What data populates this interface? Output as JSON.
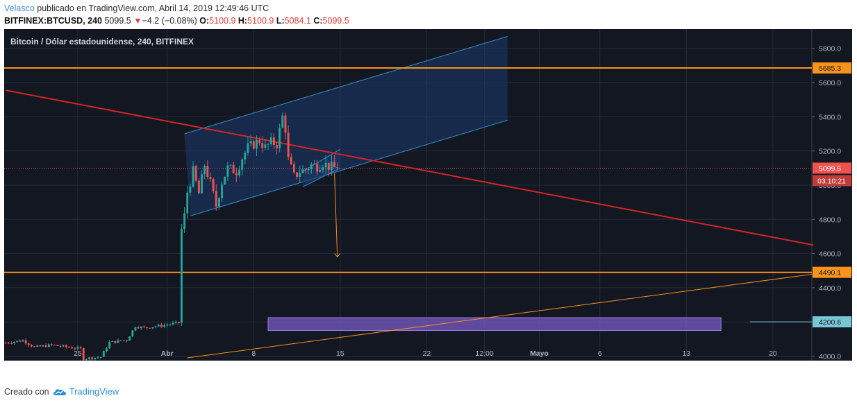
{
  "header": {
    "author": "Velasco",
    "published_text": "publicado en TradingView.com, Abril 14, 2019 12:49:46 UTC",
    "symbol": "BITFINEX:BTCUSD, 240",
    "last_price": "5099.5",
    "change": "−4.2 (−0.08%)",
    "o_label": "O:",
    "o_value": "5100.9",
    "h_label": "H:",
    "h_value": "5100.9",
    "l_label": "L:",
    "l_value": "5084.1",
    "c_label": "C:",
    "c_value": "5099.5"
  },
  "footer": {
    "created_with": "Creado con",
    "brand": "TradingView"
  },
  "chart_data": {
    "type": "candlestick",
    "title": "Bitcoin / Dólar estadounidense, 240, BITFINEX",
    "xlabel": "",
    "ylabel": "",
    "ylim": [
      3990,
      5880
    ],
    "y_ticks": [
      4000,
      4200,
      4400,
      4600,
      4800,
      5000,
      5200,
      5400,
      5600,
      5800
    ],
    "y_tick_labels": [
      "4000.0",
      "4200.0",
      "4400.0",
      "4600.0",
      "4800.0",
      "5000.0",
      "5200.0",
      "5400.0",
      "5600.0",
      "5800.0"
    ],
    "x_ticks": [
      {
        "label": "25",
        "bar": 25
      },
      {
        "label": "Abr",
        "bar": 56
      },
      {
        "label": "8",
        "bar": 86
      },
      {
        "label": "15",
        "bar": 116
      },
      {
        "label": "22",
        "bar": 146
      },
      {
        "label": "12:00",
        "bar": 166
      },
      {
        "label": "Mayo",
        "bar": 185
      },
      {
        "label": "6",
        "bar": 206
      },
      {
        "label": "13",
        "bar": 236
      },
      {
        "label": "20",
        "bar": 266
      }
    ],
    "bars_visible": 280,
    "price_path": [
      [
        0,
        4078
      ],
      [
        6,
        4092
      ],
      [
        10,
        4052
      ],
      [
        16,
        4065
      ],
      [
        22,
        4052
      ],
      [
        26,
        4042
      ],
      [
        27,
        3985
      ],
      [
        33,
        3995
      ],
      [
        36,
        4080
      ],
      [
        42,
        4095
      ],
      [
        45,
        4175
      ],
      [
        48,
        4165
      ],
      [
        52,
        4175
      ],
      [
        55,
        4180
      ],
      [
        58,
        4190
      ],
      [
        60,
        4195
      ],
      [
        61,
        4740
      ],
      [
        62,
        4820
      ],
      [
        63,
        4960
      ],
      [
        65,
        5080
      ],
      [
        67,
        4950
      ],
      [
        69,
        5120
      ],
      [
        71,
        5010
      ],
      [
        73,
        4880
      ],
      [
        75,
        5020
      ],
      [
        77,
        5100
      ],
      [
        80,
        5080
      ],
      [
        82,
        5160
      ],
      [
        84,
        5220
      ],
      [
        86,
        5240
      ],
      [
        88,
        5260
      ],
      [
        90,
        5220
      ],
      [
        92,
        5250
      ],
      [
        94,
        5240
      ],
      [
        96,
        5400
      ],
      [
        97,
        5330
      ],
      [
        98,
        5150
      ],
      [
        100,
        5050
      ],
      [
        102,
        5080
      ],
      [
        104,
        5090
      ],
      [
        106,
        5120
      ],
      [
        108,
        5110
      ],
      [
        110,
        5130
      ],
      [
        112,
        5110
      ],
      [
        114,
        5100
      ],
      [
        115,
        5099.5
      ]
    ],
    "horizontal_levels": [
      {
        "label": "5685.3",
        "value": 5685.3,
        "color": "#f7931a"
      },
      {
        "label": "4490.1",
        "value": 4490.1,
        "color": "#f7931a"
      }
    ],
    "last_price_tag": {
      "label": "5099.5",
      "countdown": "03:10:21",
      "value": 5099.5,
      "color": "#ef5350"
    },
    "zone_tag": {
      "label": "4200.6",
      "value": 4200.6,
      "color": "#77c6d3"
    },
    "trendlines": [
      {
        "name": "red-downtrend",
        "color": "#d32424",
        "from": [
          0,
          5555
        ],
        "to": [
          280,
          4650
        ]
      },
      {
        "name": "orange-uptrend",
        "color": "#f7931a",
        "from": [
          63,
          3990
        ],
        "to": [
          280,
          4480
        ]
      }
    ],
    "channels": [
      {
        "name": "wide-channel",
        "color": "#2e7fb1",
        "fill": "#1e3a6e",
        "upper_from": [
          62,
          5300
        ],
        "upper_to": [
          174,
          5870
        ],
        "lower_from": [
          64,
          4820
        ],
        "lower_to": [
          174,
          5380
        ]
      },
      {
        "name": "narrow-channel",
        "color": "#2e7fb1",
        "fill": "#1e3a6e",
        "upper_from": [
          103,
          5080
        ],
        "upper_to": [
          116,
          5210
        ],
        "lower_from": [
          103,
          4990
        ],
        "lower_to": [
          116,
          5100
        ]
      }
    ],
    "arrow": {
      "color": "#f7931a",
      "from": [
        114,
        5070
      ],
      "to": [
        115,
        4580
      ]
    },
    "rectangle": {
      "color": "#7a5bc7",
      "from_bar": 91,
      "to_bar": 248,
      "y_top": 4225,
      "y_bottom": 4150
    },
    "colors": {
      "up": "#26a69a",
      "down": "#ef5350",
      "background": "#131722",
      "grid": "#262b3a"
    }
  }
}
